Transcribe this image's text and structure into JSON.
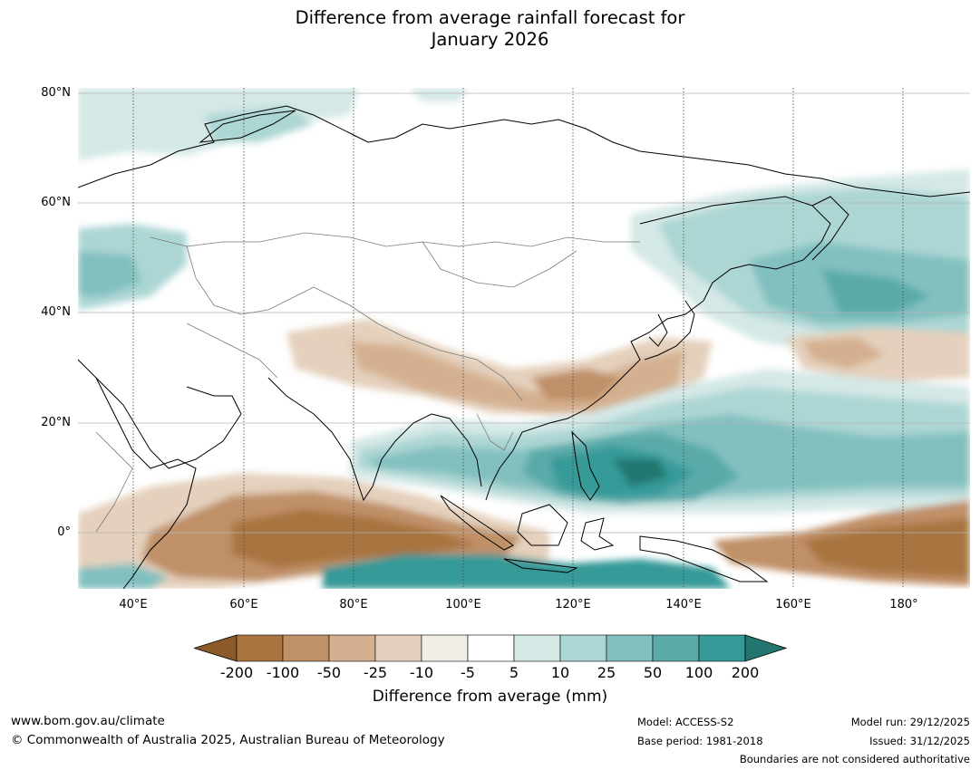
{
  "title": {
    "line1": "Difference from average rainfall forecast for",
    "line2": "January 2026"
  },
  "map": {
    "lat_labels": [
      "80°N",
      "60°N",
      "40°N",
      "20°N",
      "0°"
    ],
    "lon_labels": [
      "40°E",
      "60°E",
      "80°E",
      "100°E",
      "120°E",
      "140°E",
      "160°E",
      "180°"
    ]
  },
  "legend": {
    "title": "Difference from average (mm)",
    "ticks": [
      "-200",
      "-100",
      "-50",
      "-25",
      "-10",
      "-5",
      "5",
      "10",
      "25",
      "50",
      "100",
      "200"
    ],
    "colors": {
      "below_min": "#8c5a28",
      "m200_m100": "#a87440",
      "m100_m50": "#c09068",
      "m50_m25": "#d4b090",
      "m25_m10": "#e4d0bc",
      "m10_m5": "#f2ede7",
      "m5_p5": "#ffffff",
      "p5_p10": "#d4e8e6",
      "p10_p25": "#acd6d4",
      "p25_p50": "#82c0bf",
      "p50_p100": "#5aaaaa",
      "p100_p200": "#359a98",
      "above_max": "#237670"
    }
  },
  "footer": {
    "url": "www.bom.gov.au/climate",
    "copyright": "© Commonwealth of Australia 2025, Australian Bureau of Meteorology",
    "model": "Model: ACCESS-S2",
    "base_period": "Base period: 1981-2018",
    "model_run": "Model run: 29/12/2025",
    "issued": "Issued: 31/12/2025",
    "disclaimer": "Boundaries are not considered authoritative"
  }
}
